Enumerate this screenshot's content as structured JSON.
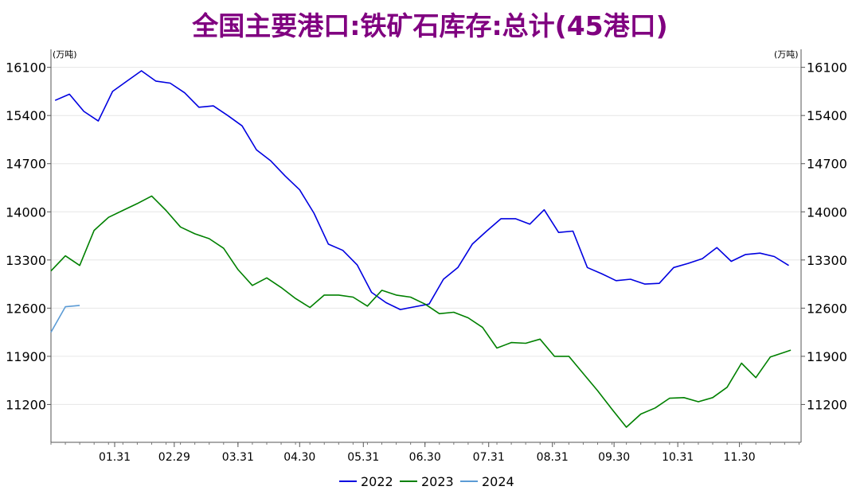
{
  "title": "全国主要港口:铁矿石库存:总计(45港口)",
  "unit_left": "(万吨)",
  "unit_right": "(万吨)",
  "chart_data": {
    "type": "line",
    "title": "全国主要港口:铁矿石库存:总计(45港口)",
    "ylabel": "万吨",
    "ylim": [
      10650,
      16200
    ],
    "yticks": [
      16100,
      15400,
      14700,
      14000,
      13300,
      12600,
      11900,
      11200
    ],
    "xlim": [
      0,
      365
    ],
    "xticks": [
      {
        "label": "01.31",
        "day": 31
      },
      {
        "label": "02.29",
        "day": 60
      },
      {
        "label": "03.31",
        "day": 91
      },
      {
        "label": "04.30",
        "day": 121
      },
      {
        "label": "05.31",
        "day": 152
      },
      {
        "label": "06.30",
        "day": 182
      },
      {
        "label": "07.31",
        "day": 213
      },
      {
        "label": "08.31",
        "day": 244
      },
      {
        "label": "09.30",
        "day": 274
      },
      {
        "label": "10.31",
        "day": 305
      },
      {
        "label": "11.30",
        "day": 335
      }
    ],
    "legend_position": "bottom",
    "grid": "horizontal",
    "series": [
      {
        "name": "2022",
        "color": "#0000e0",
        "points": [
          [
            2,
            15620
          ],
          [
            9,
            15710
          ],
          [
            16,
            15460
          ],
          [
            23,
            15320
          ],
          [
            30,
            15750
          ],
          [
            37,
            15900
          ],
          [
            44,
            16050
          ],
          [
            51,
            15900
          ],
          [
            58,
            15870
          ],
          [
            65,
            15730
          ],
          [
            72,
            15520
          ],
          [
            79,
            15540
          ],
          [
            86,
            15400
          ],
          [
            93,
            15250
          ],
          [
            100,
            14900
          ],
          [
            107,
            14740
          ],
          [
            114,
            14520
          ],
          [
            121,
            14320
          ],
          [
            128,
            13980
          ],
          [
            135,
            13530
          ],
          [
            142,
            13440
          ],
          [
            149,
            13230
          ],
          [
            156,
            12830
          ],
          [
            163,
            12680
          ],
          [
            170,
            12580
          ],
          [
            177,
            12620
          ],
          [
            184,
            12660
          ],
          [
            191,
            13020
          ],
          [
            198,
            13190
          ],
          [
            205,
            13530
          ],
          [
            212,
            13720
          ],
          [
            219,
            13900
          ],
          [
            226,
            13900
          ],
          [
            233,
            13820
          ],
          [
            240,
            14030
          ],
          [
            247,
            13700
          ],
          [
            254,
            13720
          ],
          [
            261,
            13190
          ],
          [
            268,
            13100
          ],
          [
            275,
            13000
          ],
          [
            282,
            13020
          ],
          [
            289,
            12950
          ],
          [
            296,
            12960
          ],
          [
            303,
            13190
          ],
          [
            310,
            13250
          ],
          [
            317,
            13320
          ],
          [
            324,
            13480
          ],
          [
            331,
            13280
          ],
          [
            338,
            13380
          ],
          [
            345,
            13400
          ],
          [
            352,
            13350
          ],
          [
            359,
            13220
          ]
        ]
      },
      {
        "name": "2023",
        "color": "#008000",
        "points": [
          [
            0,
            13140
          ],
          [
            7,
            13360
          ],
          [
            14,
            13220
          ],
          [
            21,
            13730
          ],
          [
            28,
            13920
          ],
          [
            35,
            14020
          ],
          [
            42,
            14120
          ],
          [
            49,
            14230
          ],
          [
            56,
            14020
          ],
          [
            63,
            13780
          ],
          [
            70,
            13680
          ],
          [
            77,
            13610
          ],
          [
            84,
            13470
          ],
          [
            91,
            13160
          ],
          [
            98,
            12930
          ],
          [
            105,
            13040
          ],
          [
            112,
            12900
          ],
          [
            119,
            12740
          ],
          [
            126,
            12610
          ],
          [
            133,
            12790
          ],
          [
            140,
            12790
          ],
          [
            147,
            12760
          ],
          [
            154,
            12630
          ],
          [
            161,
            12860
          ],
          [
            168,
            12790
          ],
          [
            175,
            12760
          ],
          [
            182,
            12660
          ],
          [
            189,
            12520
          ],
          [
            196,
            12540
          ],
          [
            203,
            12460
          ],
          [
            210,
            12320
          ],
          [
            217,
            12020
          ],
          [
            224,
            12100
          ],
          [
            231,
            12090
          ],
          [
            238,
            12150
          ],
          [
            245,
            11900
          ],
          [
            252,
            11900
          ],
          [
            259,
            11650
          ],
          [
            266,
            11400
          ],
          [
            273,
            11130
          ],
          [
            280,
            10870
          ],
          [
            287,
            11060
          ],
          [
            294,
            11150
          ],
          [
            301,
            11290
          ],
          [
            308,
            11300
          ],
          [
            315,
            11240
          ],
          [
            322,
            11300
          ],
          [
            329,
            11450
          ],
          [
            336,
            11800
          ],
          [
            343,
            11590
          ],
          [
            350,
            11890
          ],
          [
            357,
            11960
          ],
          [
            360,
            11990
          ]
        ]
      },
      {
        "name": "2024",
        "color": "#5b9bd5",
        "points": [
          [
            0,
            12250
          ],
          [
            7,
            12620
          ],
          [
            14,
            12640
          ]
        ]
      }
    ]
  }
}
